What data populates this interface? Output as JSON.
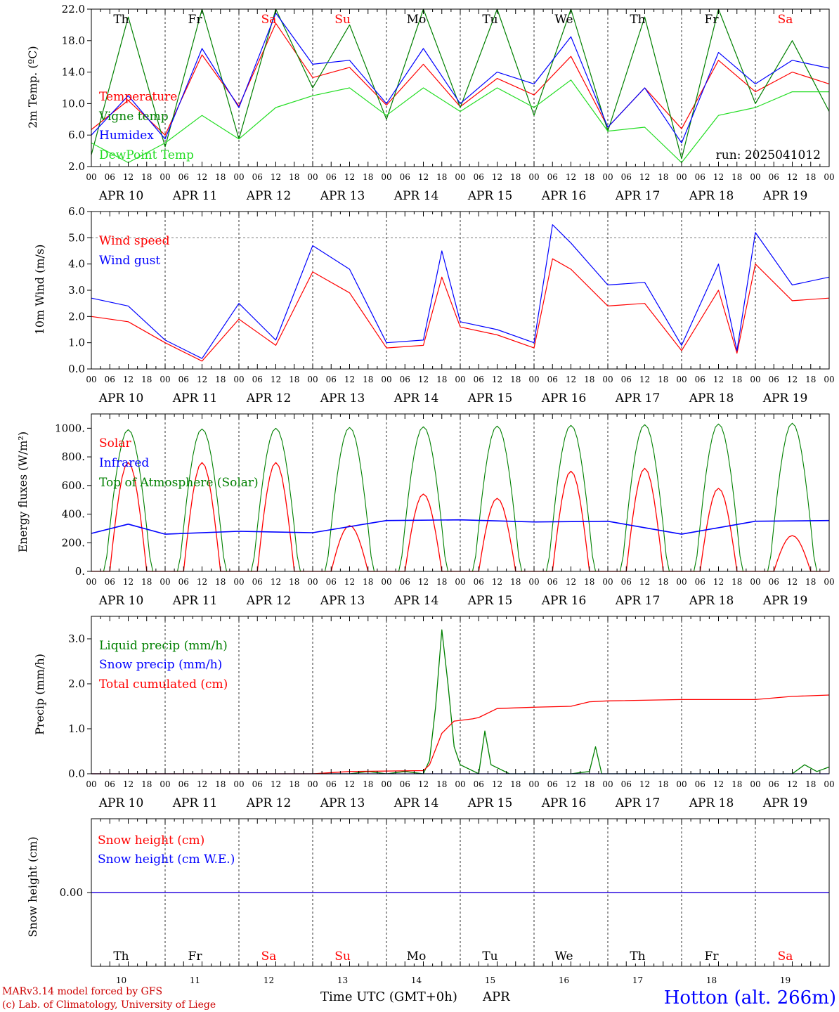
{
  "footer": {
    "model_line": "MARv3.14 model forced by GFS",
    "credit_line": "(c) Lab. of Climatology, University of Liege",
    "xaxis_title": "Time UTC (GMT+0h)",
    "month_label": "APR",
    "station": "Hotton (alt. 266m)"
  },
  "days": {
    "names": [
      "Th",
      "Fr",
      "Sa",
      "Su",
      "Mo",
      "Tu",
      "We",
      "Th",
      "Fr",
      "Sa"
    ],
    "weekend_flags": [
      false,
      false,
      true,
      true,
      false,
      false,
      false,
      false,
      false,
      true
    ],
    "dates": [
      "APR 10",
      "APR 11",
      "APR 12",
      "APR 13",
      "APR 14",
      "APR 15",
      "APR 16",
      "APR 17",
      "APR 18",
      "APR 19"
    ],
    "numbers": [
      "10",
      "11",
      "12",
      "13",
      "14",
      "15",
      "16",
      "17",
      "18",
      "19"
    ],
    "hour_ticks": [
      "00",
      "06",
      "12",
      "18"
    ],
    "end_tick": "00"
  },
  "colors": {
    "red": "#ff0000",
    "green": "#008000",
    "blue": "#0000ff",
    "lightgreen": "#22dd22",
    "station_blue": "#0000ff",
    "weekend_red": "#ff0000"
  },
  "chart_data": [
    {
      "type": "line",
      "id": "temperature",
      "ylabel": "2m Temp. (ºC)",
      "ylim": [
        2.0,
        22.0
      ],
      "yticks": [
        "2.0",
        "6.0",
        "10.0",
        "14.0",
        "18.0",
        "22.0"
      ],
      "run_label": "run: 2025041012",
      "x": [
        0,
        12,
        24,
        36,
        48,
        60,
        72,
        84,
        96,
        108,
        120,
        132,
        144,
        156,
        168,
        180,
        192,
        204,
        216,
        228,
        240
      ],
      "series": [
        {
          "name": "Temperature",
          "color": "red",
          "values": [
            6.7,
            10.4,
            6.0,
            16.2,
            9.7,
            20.2,
            13.3,
            14.6,
            9.8,
            15.0,
            9.6,
            13.2,
            11.1,
            16.0,
            7.0,
            12.0,
            6.8,
            15.5,
            11.5,
            14.0,
            12.5
          ]
        },
        {
          "name": "Vigne temp",
          "color": "green",
          "values": [
            3.5,
            21.0,
            4.5,
            22.0,
            5.5,
            22.0,
            12.0,
            20.0,
            8.0,
            22.0,
            9.5,
            22.0,
            8.5,
            22.0,
            6.5,
            21.0,
            3.0,
            22.0,
            10.0,
            18.0,
            9.0
          ]
        },
        {
          "name": "Humidex",
          "color": "blue",
          "values": [
            6.0,
            11.0,
            5.5,
            17.0,
            9.5,
            21.5,
            15.0,
            15.5,
            10.0,
            17.0,
            10.0,
            14.0,
            12.5,
            18.5,
            7.0,
            12.0,
            5.0,
            16.5,
            12.5,
            15.5,
            14.5
          ]
        },
        {
          "name": "DewPoint Temp",
          "color": "lightgreen",
          "values": [
            5.0,
            2.5,
            5.0,
            8.5,
            5.5,
            9.5,
            11.0,
            12.0,
            8.5,
            12.0,
            9.0,
            12.0,
            9.5,
            13.0,
            6.5,
            7.0,
            2.5,
            8.5,
            9.5,
            11.5,
            11.5
          ]
        }
      ]
    },
    {
      "type": "line",
      "id": "wind",
      "ylabel": "10m Wind (m/s)",
      "ylim": [
        0.0,
        6.0
      ],
      "yticks": [
        "0.0",
        "1.0",
        "2.0",
        "3.0",
        "4.0",
        "5.0",
        "6.0"
      ],
      "reference_line": 5.0,
      "x": [
        0,
        12,
        24,
        36,
        48,
        60,
        72,
        84,
        96,
        108,
        114,
        120,
        132,
        144,
        150,
        156,
        168,
        180,
        192,
        204,
        210,
        216,
        228,
        240
      ],
      "series": [
        {
          "name": "Wind speed",
          "color": "red",
          "values": [
            2.0,
            1.8,
            1.0,
            0.3,
            1.9,
            0.9,
            3.7,
            2.9,
            0.8,
            0.9,
            3.5,
            1.6,
            1.3,
            0.8,
            4.2,
            3.8,
            2.4,
            2.5,
            0.7,
            3.0,
            0.6,
            4.0,
            2.6,
            2.7
          ]
        },
        {
          "name": "Wind gust",
          "color": "blue",
          "values": [
            2.7,
            2.4,
            1.1,
            0.4,
            2.5,
            1.1,
            4.7,
            3.8,
            1.0,
            1.1,
            4.5,
            1.8,
            1.5,
            1.0,
            5.5,
            4.8,
            3.2,
            3.3,
            0.9,
            4.0,
            0.7,
            5.2,
            3.2,
            3.5
          ]
        }
      ]
    },
    {
      "type": "line",
      "id": "energy",
      "ylabel": "Energy fluxes (W/m²)",
      "ylim": [
        0,
        1100
      ],
      "yticks": [
        "0.",
        "200.",
        "400.",
        "600.",
        "800.",
        "1000."
      ],
      "series": [
        {
          "name": "Solar",
          "color": "red",
          "day_peaks": [
            760,
            760,
            760,
            320,
            540,
            510,
            700,
            720,
            580,
            250
          ]
        },
        {
          "name": "Infrared",
          "color": "blue",
          "x": [
            0,
            12,
            24,
            48,
            72,
            96,
            120,
            144,
            168,
            192,
            216,
            240
          ],
          "values": [
            265,
            330,
            260,
            280,
            270,
            355,
            360,
            345,
            350,
            260,
            350,
            355
          ]
        },
        {
          "name": "Top of Atmosphere (Solar)",
          "color": "green",
          "day_peaks": [
            990,
            995,
            1000,
            1005,
            1010,
            1015,
            1020,
            1025,
            1030,
            1035
          ]
        }
      ]
    },
    {
      "type": "line",
      "id": "precip",
      "ylabel": "Precip (mm/h)",
      "ylim": [
        0.0,
        3.5
      ],
      "yticks": [
        "0.0",
        "1.0",
        "2.0",
        "3.0"
      ],
      "series": [
        {
          "name": "Liquid precip (mm/h)",
          "color": "green",
          "x": [
            0,
            84,
            90,
            96,
            102,
            108,
            110,
            112,
            114,
            116,
            118,
            120,
            126,
            128,
            130,
            136,
            156,
            162,
            164,
            166,
            168,
            192,
            228,
            232,
            236,
            240
          ],
          "values": [
            0,
            0,
            0.05,
            0,
            0.05,
            0,
            0.3,
            1.5,
            3.2,
            2.0,
            0.6,
            0.2,
            0,
            0.95,
            0.2,
            0,
            0,
            0.05,
            0.6,
            0,
            0,
            0,
            0,
            0.2,
            0.05,
            0.15
          ]
        },
        {
          "name": "Snow precip (mm/h)",
          "color": "blue",
          "x": [
            0,
            240
          ],
          "values": [
            0,
            0
          ]
        },
        {
          "name": "Total cumulated (cm)",
          "color": "red",
          "x": [
            0,
            72,
            84,
            108,
            110,
            114,
            118,
            124,
            126,
            132,
            144,
            156,
            162,
            168,
            192,
            216,
            228,
            240
          ],
          "values": [
            0,
            0,
            0.05,
            0.07,
            0.2,
            0.9,
            1.17,
            1.22,
            1.25,
            1.45,
            1.48,
            1.5,
            1.6,
            1.62,
            1.65,
            1.65,
            1.72,
            1.75
          ]
        }
      ]
    },
    {
      "type": "line",
      "id": "snow",
      "ylabel": "Snow height (cm)",
      "ytick": "0.00",
      "series": [
        {
          "name": "Snow height (cm)",
          "color": "red",
          "x": [
            0,
            240
          ],
          "values": [
            0,
            0
          ]
        },
        {
          "name": "Snow height (cm W.E.)",
          "color": "blue",
          "x": [
            0,
            240
          ],
          "values": [
            0,
            0
          ]
        }
      ]
    }
  ]
}
